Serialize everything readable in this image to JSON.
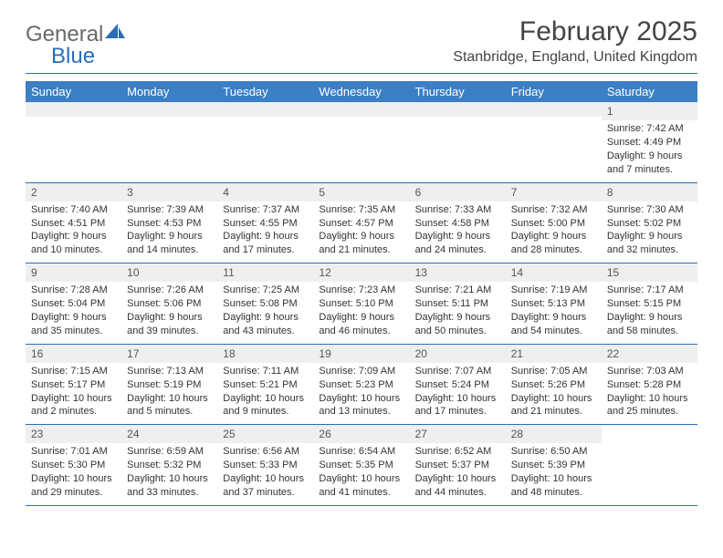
{
  "logo": {
    "word1": "General",
    "word2": "Blue"
  },
  "title": "February 2025",
  "location": "Stanbridge, England, United Kingdom",
  "colors": {
    "header_bg": "#3b7fc4",
    "rule": "#2a6db8",
    "grey": "#efefef",
    "text": "#333333"
  },
  "dayHeaders": [
    "Sunday",
    "Monday",
    "Tuesday",
    "Wednesday",
    "Thursday",
    "Friday",
    "Saturday"
  ],
  "weeks": [
    [
      null,
      null,
      null,
      null,
      null,
      null,
      {
        "num": "1",
        "sunrise": "Sunrise: 7:42 AM",
        "sunset": "Sunset: 4:49 PM",
        "daylight1": "Daylight: 9 hours",
        "daylight2": "and 7 minutes."
      }
    ],
    [
      {
        "num": "2",
        "sunrise": "Sunrise: 7:40 AM",
        "sunset": "Sunset: 4:51 PM",
        "daylight1": "Daylight: 9 hours",
        "daylight2": "and 10 minutes."
      },
      {
        "num": "3",
        "sunrise": "Sunrise: 7:39 AM",
        "sunset": "Sunset: 4:53 PM",
        "daylight1": "Daylight: 9 hours",
        "daylight2": "and 14 minutes."
      },
      {
        "num": "4",
        "sunrise": "Sunrise: 7:37 AM",
        "sunset": "Sunset: 4:55 PM",
        "daylight1": "Daylight: 9 hours",
        "daylight2": "and 17 minutes."
      },
      {
        "num": "5",
        "sunrise": "Sunrise: 7:35 AM",
        "sunset": "Sunset: 4:57 PM",
        "daylight1": "Daylight: 9 hours",
        "daylight2": "and 21 minutes."
      },
      {
        "num": "6",
        "sunrise": "Sunrise: 7:33 AM",
        "sunset": "Sunset: 4:58 PM",
        "daylight1": "Daylight: 9 hours",
        "daylight2": "and 24 minutes."
      },
      {
        "num": "7",
        "sunrise": "Sunrise: 7:32 AM",
        "sunset": "Sunset: 5:00 PM",
        "daylight1": "Daylight: 9 hours",
        "daylight2": "and 28 minutes."
      },
      {
        "num": "8",
        "sunrise": "Sunrise: 7:30 AM",
        "sunset": "Sunset: 5:02 PM",
        "daylight1": "Daylight: 9 hours",
        "daylight2": "and 32 minutes."
      }
    ],
    [
      {
        "num": "9",
        "sunrise": "Sunrise: 7:28 AM",
        "sunset": "Sunset: 5:04 PM",
        "daylight1": "Daylight: 9 hours",
        "daylight2": "and 35 minutes."
      },
      {
        "num": "10",
        "sunrise": "Sunrise: 7:26 AM",
        "sunset": "Sunset: 5:06 PM",
        "daylight1": "Daylight: 9 hours",
        "daylight2": "and 39 minutes."
      },
      {
        "num": "11",
        "sunrise": "Sunrise: 7:25 AM",
        "sunset": "Sunset: 5:08 PM",
        "daylight1": "Daylight: 9 hours",
        "daylight2": "and 43 minutes."
      },
      {
        "num": "12",
        "sunrise": "Sunrise: 7:23 AM",
        "sunset": "Sunset: 5:10 PM",
        "daylight1": "Daylight: 9 hours",
        "daylight2": "and 46 minutes."
      },
      {
        "num": "13",
        "sunrise": "Sunrise: 7:21 AM",
        "sunset": "Sunset: 5:11 PM",
        "daylight1": "Daylight: 9 hours",
        "daylight2": "and 50 minutes."
      },
      {
        "num": "14",
        "sunrise": "Sunrise: 7:19 AM",
        "sunset": "Sunset: 5:13 PM",
        "daylight1": "Daylight: 9 hours",
        "daylight2": "and 54 minutes."
      },
      {
        "num": "15",
        "sunrise": "Sunrise: 7:17 AM",
        "sunset": "Sunset: 5:15 PM",
        "daylight1": "Daylight: 9 hours",
        "daylight2": "and 58 minutes."
      }
    ],
    [
      {
        "num": "16",
        "sunrise": "Sunrise: 7:15 AM",
        "sunset": "Sunset: 5:17 PM",
        "daylight1": "Daylight: 10 hours",
        "daylight2": "and 2 minutes."
      },
      {
        "num": "17",
        "sunrise": "Sunrise: 7:13 AM",
        "sunset": "Sunset: 5:19 PM",
        "daylight1": "Daylight: 10 hours",
        "daylight2": "and 5 minutes."
      },
      {
        "num": "18",
        "sunrise": "Sunrise: 7:11 AM",
        "sunset": "Sunset: 5:21 PM",
        "daylight1": "Daylight: 10 hours",
        "daylight2": "and 9 minutes."
      },
      {
        "num": "19",
        "sunrise": "Sunrise: 7:09 AM",
        "sunset": "Sunset: 5:23 PM",
        "daylight1": "Daylight: 10 hours",
        "daylight2": "and 13 minutes."
      },
      {
        "num": "20",
        "sunrise": "Sunrise: 7:07 AM",
        "sunset": "Sunset: 5:24 PM",
        "daylight1": "Daylight: 10 hours",
        "daylight2": "and 17 minutes."
      },
      {
        "num": "21",
        "sunrise": "Sunrise: 7:05 AM",
        "sunset": "Sunset: 5:26 PM",
        "daylight1": "Daylight: 10 hours",
        "daylight2": "and 21 minutes."
      },
      {
        "num": "22",
        "sunrise": "Sunrise: 7:03 AM",
        "sunset": "Sunset: 5:28 PM",
        "daylight1": "Daylight: 10 hours",
        "daylight2": "and 25 minutes."
      }
    ],
    [
      {
        "num": "23",
        "sunrise": "Sunrise: 7:01 AM",
        "sunset": "Sunset: 5:30 PM",
        "daylight1": "Daylight: 10 hours",
        "daylight2": "and 29 minutes."
      },
      {
        "num": "24",
        "sunrise": "Sunrise: 6:59 AM",
        "sunset": "Sunset: 5:32 PM",
        "daylight1": "Daylight: 10 hours",
        "daylight2": "and 33 minutes."
      },
      {
        "num": "25",
        "sunrise": "Sunrise: 6:56 AM",
        "sunset": "Sunset: 5:33 PM",
        "daylight1": "Daylight: 10 hours",
        "daylight2": "and 37 minutes."
      },
      {
        "num": "26",
        "sunrise": "Sunrise: 6:54 AM",
        "sunset": "Sunset: 5:35 PM",
        "daylight1": "Daylight: 10 hours",
        "daylight2": "and 41 minutes."
      },
      {
        "num": "27",
        "sunrise": "Sunrise: 6:52 AM",
        "sunset": "Sunset: 5:37 PM",
        "daylight1": "Daylight: 10 hours",
        "daylight2": "and 44 minutes."
      },
      {
        "num": "28",
        "sunrise": "Sunrise: 6:50 AM",
        "sunset": "Sunset: 5:39 PM",
        "daylight1": "Daylight: 10 hours",
        "daylight2": "and 48 minutes."
      },
      null
    ]
  ]
}
